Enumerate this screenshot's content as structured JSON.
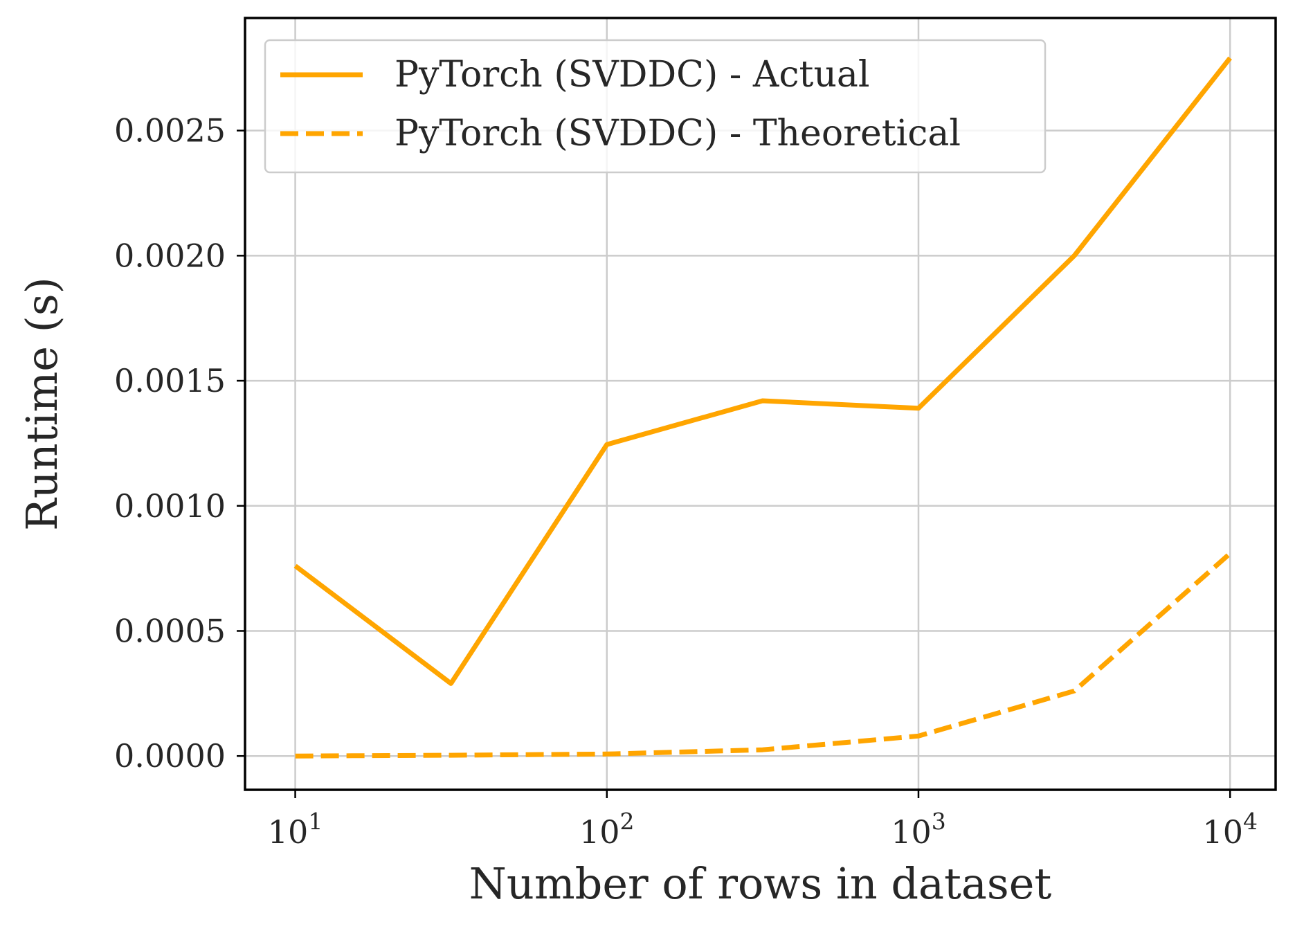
{
  "chart_data": {
    "type": "line",
    "xlabel": "Number of rows in dataset",
    "ylabel": "Runtime (s)",
    "xscale": "log",
    "xlim": [
      6.9,
      14000
    ],
    "ylim": [
      -0.000135,
      0.00295
    ],
    "x_ticks": [
      10,
      100,
      1000,
      10000
    ],
    "x_tick_labels": [
      {
        "base": "10",
        "exp": "1"
      },
      {
        "base": "10",
        "exp": "2"
      },
      {
        "base": "10",
        "exp": "3"
      },
      {
        "base": "10",
        "exp": "4"
      }
    ],
    "y_ticks": [
      0.0,
      0.0005,
      0.001,
      0.0015,
      0.002,
      0.0025
    ],
    "y_tick_labels": [
      "0.0000",
      "0.0005",
      "0.0010",
      "0.0015",
      "0.0020",
      "0.0025"
    ],
    "grid": true,
    "legend": "top-left",
    "x": [
      10,
      31.6,
      100,
      316,
      1000,
      3162,
      10000
    ],
    "series": [
      {
        "name": "PyTorch (SVDDC) - Actual",
        "style": "solid",
        "color": "#ffa500",
        "values": [
          0.00076,
          0.00029,
          0.001245,
          0.00142,
          0.00139,
          0.002,
          0.00279
        ]
      },
      {
        "name": "PyTorch (SVDDC) - Theoretical",
        "style": "dashed",
        "color": "#ffa500",
        "values": [
          0.0,
          3e-06,
          8e-06,
          2.5e-05,
          8e-05,
          0.00026,
          0.00081
        ]
      }
    ]
  }
}
